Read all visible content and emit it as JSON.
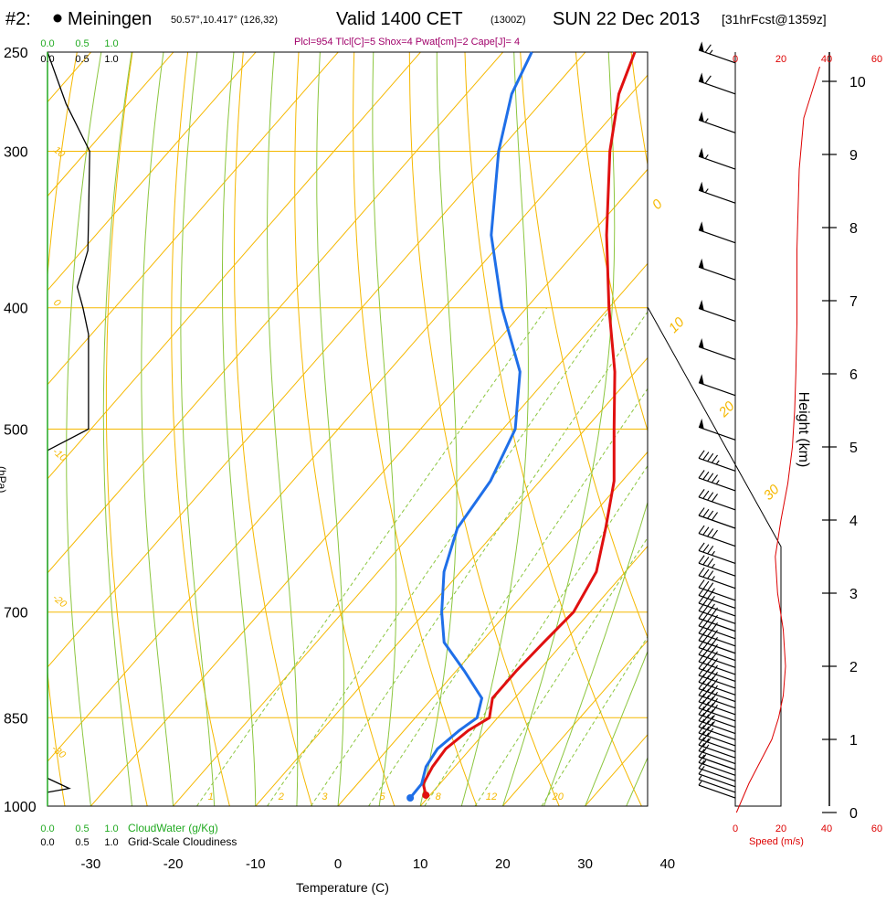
{
  "header": {
    "prefix": "#2:",
    "station": "Meiningen",
    "coords": "50.57°,10.417° (126,32)",
    "valid_main": "Valid 1400 CET",
    "valid_utc": "(1300Z)",
    "valid_date": "SUN 22 Dec 2013",
    "forecast": "[31hrFcst@1359z]",
    "indices": "Plcl=954 Tlcl[C]=5 Shox=4 Pwat[cm]=2 Cape[J]= 4"
  },
  "colors": {
    "temperature": "#e01010",
    "dewpoint": "#1f6fe8",
    "isotherm": "#f5b800",
    "dry_adiabat": "#f5b800",
    "moist_adiabat": "#8cc63f",
    "mixing_ratio": "#8cc63f",
    "cloudwater_axis": "#22aa22",
    "speed_axis": "#dd0000",
    "cloudiness": "#000000",
    "indices_text": "#a0006a"
  },
  "chart_data": {
    "type": "skew-t",
    "xlabel": "Temperature (C)",
    "xlim": [
      -35,
      45
    ],
    "x_ticks": [
      -30,
      -20,
      -10,
      0,
      10,
      20,
      30,
      40
    ],
    "y_pressure_ticks": [
      250,
      300,
      400,
      500,
      700,
      850,
      1000
    ],
    "pressure_range_hpa": [
      1000,
      250
    ],
    "y_scale": "log-pressure",
    "temperature_profile": [
      {
        "p": 980,
        "t": 9.5
      },
      {
        "p": 960,
        "t": 8.0
      },
      {
        "p": 930,
        "t": 7.3
      },
      {
        "p": 900,
        "t": 7.0
      },
      {
        "p": 870,
        "t": 7.8
      },
      {
        "p": 850,
        "t": 9.0
      },
      {
        "p": 820,
        "t": 7.3
      },
      {
        "p": 780,
        "t": 7.3
      },
      {
        "p": 740,
        "t": 7.6
      },
      {
        "p": 700,
        "t": 8.0
      },
      {
        "p": 650,
        "t": 6.5
      },
      {
        "p": 600,
        "t": 3.0
      },
      {
        "p": 550,
        "t": -1.0
      },
      {
        "p": 500,
        "t": -6.5
      },
      {
        "p": 450,
        "t": -12.5
      },
      {
        "p": 400,
        "t": -20.0
      },
      {
        "p": 350,
        "t": -28.0
      },
      {
        "p": 300,
        "t": -36.5
      },
      {
        "p": 270,
        "t": -41.5
      },
      {
        "p": 250,
        "t": -44.0
      }
    ],
    "dewpoint_profile": [
      {
        "p": 985,
        "t": 7.9
      },
      {
        "p": 960,
        "t": 7.8
      },
      {
        "p": 930,
        "t": 6.5
      },
      {
        "p": 900,
        "t": 6.0
      },
      {
        "p": 870,
        "t": 6.7
      },
      {
        "p": 850,
        "t": 7.5
      },
      {
        "p": 820,
        "t": 6.0
      },
      {
        "p": 780,
        "t": 1.0
      },
      {
        "p": 740,
        "t": -4.5
      },
      {
        "p": 700,
        "t": -8.0
      },
      {
        "p": 650,
        "t": -12.0
      },
      {
        "p": 600,
        "t": -15.0
      },
      {
        "p": 550,
        "t": -16.0
      },
      {
        "p": 500,
        "t": -18.5
      },
      {
        "p": 450,
        "t": -24.0
      },
      {
        "p": 400,
        "t": -33.0
      },
      {
        "p": 350,
        "t": -42.0
      },
      {
        "p": 300,
        "t": -50.0
      },
      {
        "p": 270,
        "t": -54.5
      },
      {
        "p": 250,
        "t": -56.5
      }
    ],
    "isotherm_labels": [
      "0",
      "10",
      "20",
      "30"
    ],
    "dry_adiabat_labels": [
      "10",
      "0",
      "-10",
      "-20",
      "-30"
    ],
    "mixing_ratio_labels": [
      "1",
      "2",
      "3",
      "5",
      "8",
      "12",
      "20"
    ],
    "cloudwater_axis": {
      "label": "CloudWater (g/Kg)",
      "ticks": [
        "0.0",
        "0.5",
        "1.0"
      ],
      "range": [
        0,
        1
      ]
    },
    "cloudiness_axis": {
      "label": "Grid-Scale Cloudiness",
      "ticks": [
        "0.0",
        "0.5",
        "1.0"
      ],
      "range": [
        0,
        1
      ]
    },
    "cloudiness_profile": [
      {
        "p": 250,
        "v": 0.0
      },
      {
        "p": 275,
        "v": 0.3
      },
      {
        "p": 300,
        "v": 0.68
      },
      {
        "p": 340,
        "v": 0.66
      },
      {
        "p": 360,
        "v": 0.65
      },
      {
        "p": 385,
        "v": 0.48
      },
      {
        "p": 400,
        "v": 0.57
      },
      {
        "p": 420,
        "v": 0.66
      },
      {
        "p": 500,
        "v": 0.66
      },
      {
        "p": 520,
        "v": 0.0
      },
      {
        "p": 950,
        "v": 0.0
      },
      {
        "p": 968,
        "v": 0.35
      },
      {
        "p": 975,
        "v": 0.0
      }
    ],
    "wind_speed_profile": [
      {
        "p": 1000,
        "h": 0.0,
        "v": 0.5
      },
      {
        "p": 960,
        "h": 0.4,
        "v": 6.0
      },
      {
        "p": 940,
        "h": 0.7,
        "v": 11.0
      },
      {
        "p": 900,
        "h": 1.0,
        "v": 16.0
      },
      {
        "p": 870,
        "h": 1.3,
        "v": 19.0
      },
      {
        "p": 830,
        "h": 1.6,
        "v": 21.0
      },
      {
        "p": 790,
        "h": 2.0,
        "v": 22.0
      },
      {
        "p": 740,
        "h": 2.5,
        "v": 21.0
      },
      {
        "p": 700,
        "h": 3.0,
        "v": 18.5
      },
      {
        "p": 650,
        "h": 3.5,
        "v": 17.5
      },
      {
        "p": 610,
        "h": 4.0,
        "v": 20.0
      },
      {
        "p": 560,
        "h": 4.5,
        "v": 23.0
      },
      {
        "p": 520,
        "h": 5.0,
        "v": 25.0
      },
      {
        "p": 480,
        "h": 5.5,
        "v": 26.0
      },
      {
        "p": 440,
        "h": 6.0,
        "v": 26.5
      },
      {
        "p": 400,
        "h": 6.7,
        "v": 27.0
      },
      {
        "p": 350,
        "h": 7.7,
        "v": 27.0
      },
      {
        "p": 300,
        "h": 8.8,
        "v": 28.0
      },
      {
        "p": 270,
        "h": 9.5,
        "v": 30.0
      },
      {
        "p": 250,
        "h": 10.2,
        "v": 37.0
      }
    ],
    "speed_axis": {
      "label": "Speed (m/s)",
      "ticks": [
        "0",
        "20",
        "40",
        "60"
      ],
      "range": [
        0,
        60
      ]
    },
    "height_axis": {
      "label": "Height (km)",
      "ticks": [
        "0",
        "1",
        "2",
        "3",
        "4",
        "5",
        "6",
        "7",
        "8",
        "9",
        "10"
      ]
    },
    "wind_barbs": [
      {
        "p": 985,
        "kt": 5
      },
      {
        "p": 975,
        "kt": 5
      },
      {
        "p": 965,
        "kt": 10
      },
      {
        "p": 955,
        "kt": 10
      },
      {
        "p": 945,
        "kt": 15
      },
      {
        "p": 935,
        "kt": 15
      },
      {
        "p": 925,
        "kt": 20
      },
      {
        "p": 915,
        "kt": 20
      },
      {
        "p": 905,
        "kt": 25
      },
      {
        "p": 895,
        "kt": 30
      },
      {
        "p": 885,
        "kt": 30
      },
      {
        "p": 875,
        "kt": 35
      },
      {
        "p": 865,
        "kt": 35
      },
      {
        "p": 855,
        "kt": 40
      },
      {
        "p": 845,
        "kt": 40
      },
      {
        "p": 835,
        "kt": 40
      },
      {
        "p": 825,
        "kt": 40
      },
      {
        "p": 815,
        "kt": 40
      },
      {
        "p": 805,
        "kt": 40
      },
      {
        "p": 795,
        "kt": 40
      },
      {
        "p": 785,
        "kt": 40
      },
      {
        "p": 775,
        "kt": 40
      },
      {
        "p": 765,
        "kt": 40
      },
      {
        "p": 755,
        "kt": 40
      },
      {
        "p": 745,
        "kt": 40
      },
      {
        "p": 735,
        "kt": 40
      },
      {
        "p": 725,
        "kt": 40
      },
      {
        "p": 715,
        "kt": 40
      },
      {
        "p": 705,
        "kt": 35
      },
      {
        "p": 695,
        "kt": 35
      },
      {
        "p": 685,
        "kt": 35
      },
      {
        "p": 670,
        "kt": 35
      },
      {
        "p": 655,
        "kt": 35
      },
      {
        "p": 640,
        "kt": 35
      },
      {
        "p": 620,
        "kt": 40
      },
      {
        "p": 600,
        "kt": 40
      },
      {
        "p": 580,
        "kt": 40
      },
      {
        "p": 560,
        "kt": 45
      },
      {
        "p": 540,
        "kt": 45
      },
      {
        "p": 510,
        "kt": 50
      },
      {
        "p": 470,
        "kt": 50
      },
      {
        "p": 440,
        "kt": 50
      },
      {
        "p": 410,
        "kt": 50
      },
      {
        "p": 380,
        "kt": 50
      },
      {
        "p": 355,
        "kt": 50
      },
      {
        "p": 330,
        "kt": 55
      },
      {
        "p": 310,
        "kt": 55
      },
      {
        "p": 290,
        "kt": 55
      },
      {
        "p": 270,
        "kt": 60
      },
      {
        "p": 255,
        "kt": 65
      }
    ]
  }
}
